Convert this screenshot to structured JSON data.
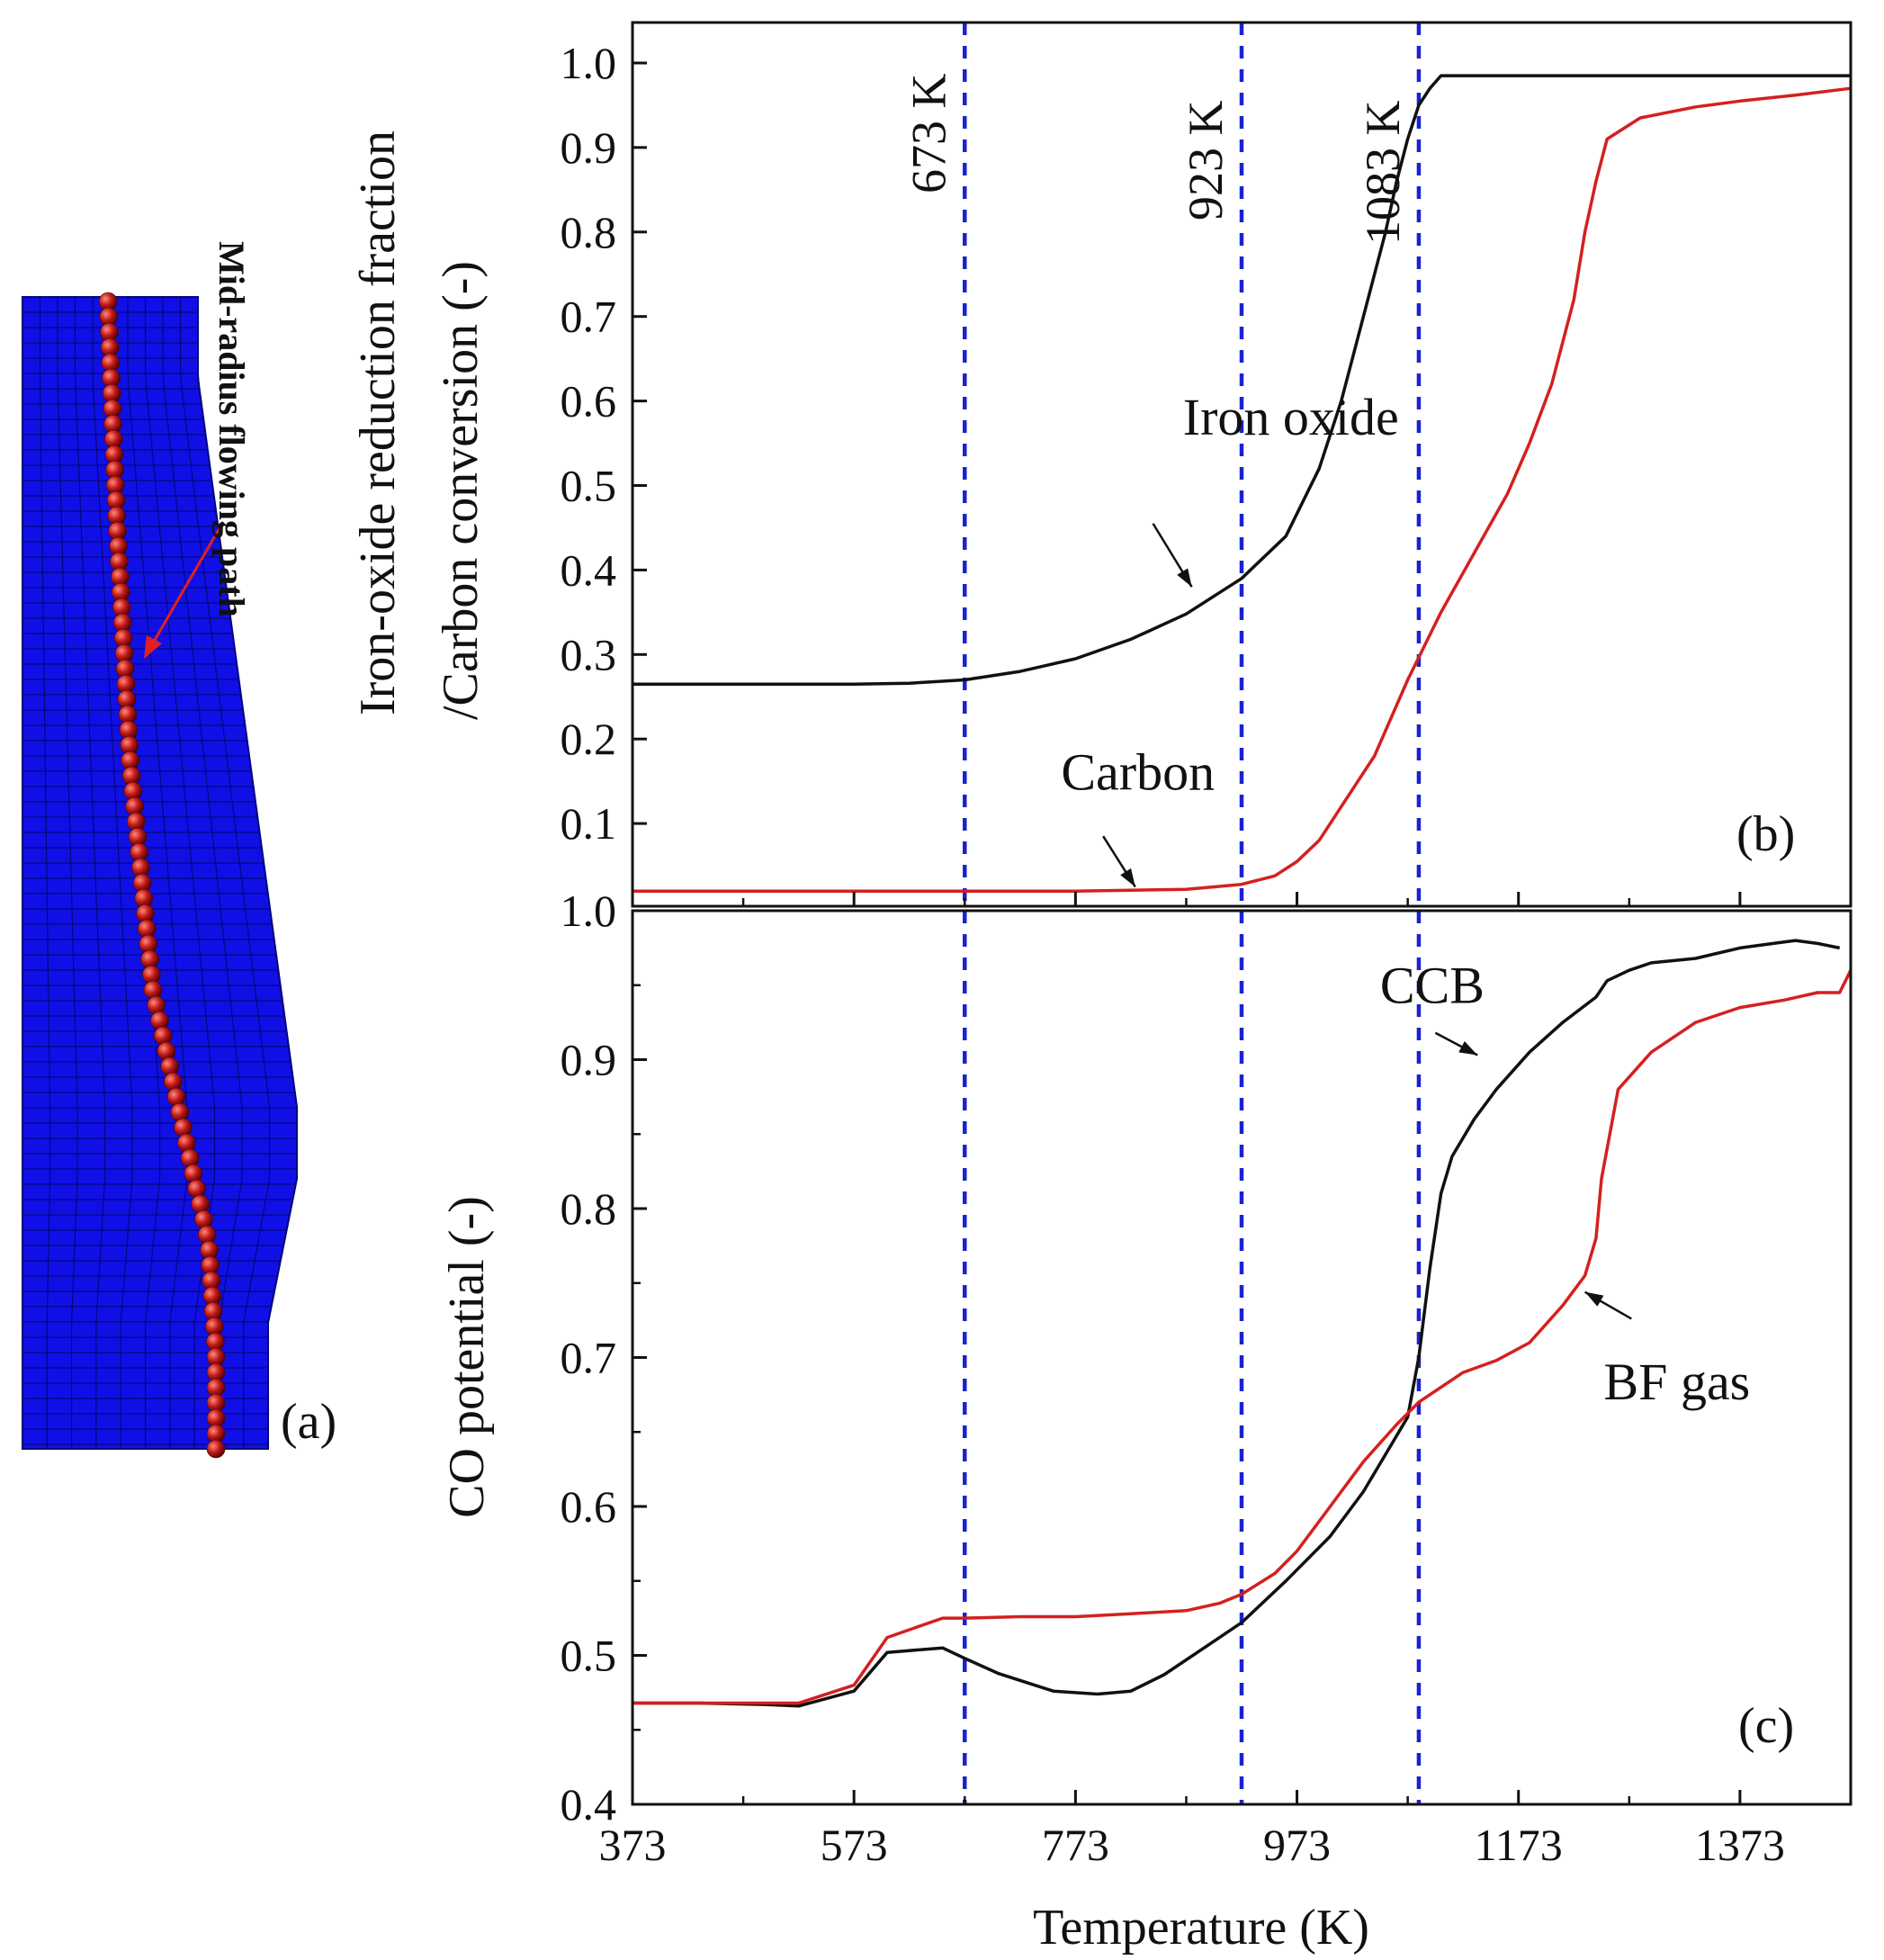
{
  "colors": {
    "mesh_blue": "#1010e6",
    "mesh_line": "#06067a",
    "particle_red": "#c01818",
    "black_series": "#111111",
    "red_series": "#d42020",
    "guide_blue": "#1a22d0",
    "path_label": "#e02020"
  },
  "panel_a": {
    "label": "(a)",
    "path_label": "Mid-radius flowing path"
  },
  "chart_data": [
    {
      "type": "line",
      "panel": "(b)",
      "title": "",
      "xlabel": "",
      "ylabel_line1": "Iron-oxide reduction fraction",
      "ylabel_line2": "/Carbon conversion (-)",
      "xlim": [
        373,
        1473
      ],
      "ylim": [
        0.0,
        1.05
      ],
      "yticks": [
        0.1,
        0.2,
        0.3,
        0.4,
        0.5,
        0.6,
        0.7,
        0.8,
        0.9,
        1.0
      ],
      "ytick_labels": [
        "0.1",
        "0.2",
        "0.3",
        "0.4",
        "0.5",
        "0.6",
        "0.7",
        "0.8",
        "0.9",
        "1.0"
      ],
      "vlines": [
        {
          "x": 673,
          "label": "673 K"
        },
        {
          "x": 923,
          "label": "923 K"
        },
        {
          "x": 1083,
          "label": "1083 K"
        }
      ],
      "annotations": [
        {
          "text": "Iron oxide",
          "x": 870,
          "y": 0.56,
          "arrow_to": [
            878,
            0.38
          ],
          "arrow_from": [
            843,
            0.455
          ]
        },
        {
          "text": "Carbon",
          "x": 760,
          "y": 0.14,
          "arrow_to": [
            827,
            0.025
          ],
          "arrow_from": [
            798,
            0.085
          ]
        }
      ],
      "series": [
        {
          "name": "Iron oxide",
          "color": "black",
          "x": [
            373,
            473,
            573,
            623,
            673,
            723,
            773,
            823,
            873,
            923,
            963,
            993,
            1013,
            1033,
            1053,
            1063,
            1073,
            1083,
            1093,
            1103,
            1473
          ],
          "y": [
            0.265,
            0.265,
            0.265,
            0.266,
            0.27,
            0.28,
            0.295,
            0.318,
            0.348,
            0.39,
            0.44,
            0.52,
            0.6,
            0.7,
            0.8,
            0.86,
            0.91,
            0.95,
            0.97,
            0.985,
            0.985
          ]
        },
        {
          "name": "Carbon",
          "color": "red",
          "x": [
            373,
            573,
            773,
            873,
            923,
            953,
            973,
            993,
            1013,
            1043,
            1073,
            1103,
            1133,
            1163,
            1183,
            1203,
            1223,
            1233,
            1243,
            1253,
            1283,
            1333,
            1373,
            1423,
            1473
          ],
          "y": [
            0.02,
            0.02,
            0.02,
            0.022,
            0.028,
            0.038,
            0.055,
            0.08,
            0.12,
            0.18,
            0.27,
            0.35,
            0.42,
            0.49,
            0.55,
            0.62,
            0.72,
            0.8,
            0.86,
            0.91,
            0.935,
            0.948,
            0.955,
            0.962,
            0.97
          ]
        }
      ]
    },
    {
      "type": "line",
      "panel": "(c)",
      "title": "",
      "xlabel": "Temperature (K)",
      "ylabel": "CO potential (-)",
      "xlim": [
        373,
        1473
      ],
      "ylim": [
        0.4,
        1.0
      ],
      "xticks": [
        373,
        573,
        773,
        973,
        1173,
        1373
      ],
      "xtick_labels": [
        "373",
        "573",
        "773",
        "973",
        "1173",
        "1373"
      ],
      "yticks": [
        0.4,
        0.5,
        0.6,
        0.7,
        0.8,
        0.9,
        1.0
      ],
      "ytick_labels": [
        "0.4",
        "0.5",
        "0.6",
        "0.7",
        "0.8",
        "0.9",
        "1.0"
      ],
      "annotations": [
        {
          "text": "CCB",
          "x": 1048,
          "y": 0.938,
          "arrow_to": [
            1136,
            0.903
          ],
          "arrow_from": [
            1098,
            0.918
          ]
        },
        {
          "text": "BF gas",
          "x": 1250,
          "y": 0.672,
          "arrow_to": [
            1233,
            0.744
          ],
          "arrow_from": [
            1275,
            0.726
          ]
        }
      ],
      "series": [
        {
          "name": "CCB",
          "color": "black",
          "x": [
            373,
            433,
            493,
            523,
            573,
            603,
            653,
            673,
            703,
            753,
            793,
            823,
            853,
            893,
            923,
            963,
            1003,
            1033,
            1053,
            1073,
            1083,
            1093,
            1103,
            1113,
            1133,
            1153,
            1183,
            1213,
            1243,
            1253,
            1273,
            1293,
            1333,
            1373,
            1403,
            1423,
            1443,
            1463
          ],
          "y": [
            0.468,
            0.468,
            0.467,
            0.466,
            0.476,
            0.502,
            0.505,
            0.498,
            0.488,
            0.476,
            0.474,
            0.476,
            0.487,
            0.507,
            0.522,
            0.55,
            0.58,
            0.61,
            0.635,
            0.66,
            0.7,
            0.76,
            0.81,
            0.835,
            0.86,
            0.88,
            0.905,
            0.925,
            0.942,
            0.953,
            0.96,
            0.965,
            0.968,
            0.975,
            0.978,
            0.98,
            0.978,
            0.975
          ]
        },
        {
          "name": "BF gas",
          "color": "red",
          "x": [
            373,
            433,
            493,
            523,
            573,
            603,
            653,
            673,
            723,
            773,
            823,
            873,
            903,
            923,
            953,
            973,
            1003,
            1033,
            1063,
            1083,
            1103,
            1123,
            1153,
            1183,
            1213,
            1233,
            1243,
            1248,
            1263,
            1293,
            1333,
            1373,
            1413,
            1443,
            1463,
            1473
          ],
          "y": [
            0.468,
            0.468,
            0.468,
            0.468,
            0.48,
            0.512,
            0.525,
            0.525,
            0.526,
            0.526,
            0.528,
            0.53,
            0.535,
            0.541,
            0.555,
            0.57,
            0.6,
            0.63,
            0.655,
            0.67,
            0.68,
            0.69,
            0.698,
            0.71,
            0.735,
            0.755,
            0.78,
            0.82,
            0.88,
            0.905,
            0.925,
            0.935,
            0.94,
            0.945,
            0.945,
            0.96
          ]
        }
      ]
    }
  ]
}
